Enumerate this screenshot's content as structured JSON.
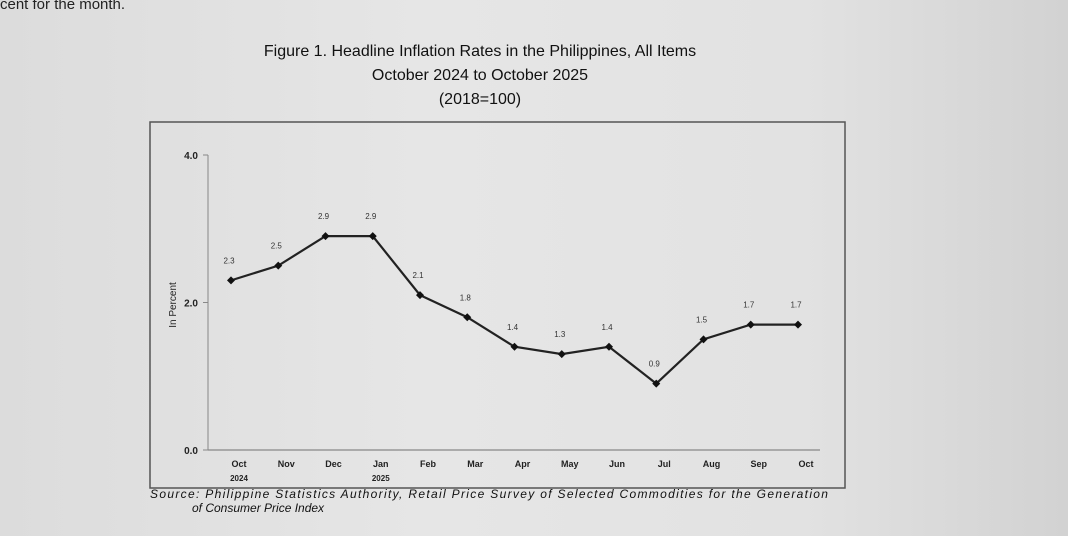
{
  "previous_text": "cent for the month.",
  "chart_data": {
    "type": "line",
    "title": "Figure 1. Headline Inflation Rates in the Philippines, All Items",
    "subtitle": "October 2024 to October 2025",
    "base": "(2018=100)",
    "ylabel": "In Percent",
    "xlabel": "",
    "ylim": [
      0,
      4
    ],
    "yticks": [
      "0.0",
      "2.0",
      "4.0"
    ],
    "ytick_values": [
      0,
      2,
      4
    ],
    "categories": [
      "Oct",
      "Nov",
      "Dec",
      "Jan",
      "Feb",
      "Mar",
      "Apr",
      "May",
      "Jun",
      "Jul",
      "Aug",
      "Sep",
      "Oct"
    ],
    "year_labels": {
      "0": "2024",
      "3": "2025"
    },
    "series": [
      {
        "name": "Headline Inflation",
        "values": [
          2.3,
          2.5,
          2.9,
          2.9,
          2.1,
          1.8,
          1.4,
          1.3,
          1.4,
          0.9,
          1.5,
          1.7,
          1.7
        ]
      }
    ],
    "data_labels": [
      "2.3",
      "2.5",
      "2.9",
      "2.9",
      "2.1",
      "1.8",
      "1.4",
      "1.3",
      "1.4",
      "0.9",
      "1.5",
      "1.7",
      "1.7"
    ],
    "grid": false,
    "legend": "none",
    "source_line1": "Source:  Philippine Statistics Authority, Retail Price Survey of Selected Commodities for the Generation",
    "source_line2": "of Consumer Price Index"
  }
}
